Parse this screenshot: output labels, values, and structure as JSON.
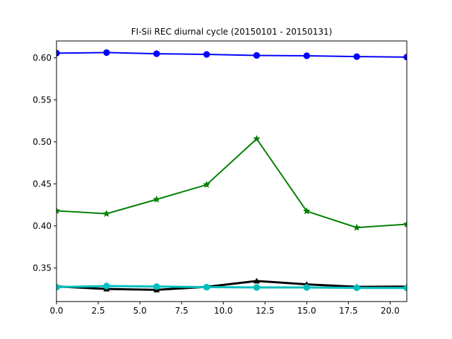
{
  "chart_data": {
    "type": "line",
    "title": "FI-Sii REC diurnal cycle (20150101 - 20150131)",
    "xlabel": "",
    "ylabel": "",
    "xlim": [
      0,
      21
    ],
    "ylim": [
      0.31,
      0.62
    ],
    "grid": false,
    "x_ticks": [
      0.0,
      2.5,
      5.0,
      7.5,
      10.0,
      12.5,
      15.0,
      17.5,
      20.0
    ],
    "x_tick_labels": [
      "0.0",
      "2.5",
      "5.0",
      "7.5",
      "10.0",
      "12.5",
      "15.0",
      "17.5",
      "20.0"
    ],
    "y_ticks": [
      0.35,
      0.4,
      0.45,
      0.5,
      0.55,
      0.6
    ],
    "y_tick_labels": [
      "0.35",
      "0.40",
      "0.45",
      "0.50",
      "0.55",
      "0.60"
    ],
    "x": [
      0,
      3,
      6,
      9,
      12,
      15,
      18,
      21
    ],
    "series": [
      {
        "color": "#0000ff",
        "marker": "circle",
        "values": [
          0.6055,
          0.6062,
          0.6048,
          0.604,
          0.6028,
          0.6024,
          0.6014,
          0.6008
        ]
      },
      {
        "color": "#008000",
        "marker": "star",
        "values": [
          0.418,
          0.4145,
          0.4315,
          0.449,
          0.5035,
          0.4175,
          0.398,
          0.402
        ]
      },
      {
        "color": "#000000",
        "marker": "triangle",
        "values": [
          0.328,
          0.325,
          0.324,
          0.3275,
          0.3345,
          0.3305,
          0.3275,
          0.3278
        ]
      },
      {
        "color": "#00bfbf",
        "marker": "circle",
        "values": [
          0.3272,
          0.3285,
          0.3278,
          0.3272,
          0.3268,
          0.3268,
          0.3263,
          0.3262
        ]
      }
    ]
  }
}
